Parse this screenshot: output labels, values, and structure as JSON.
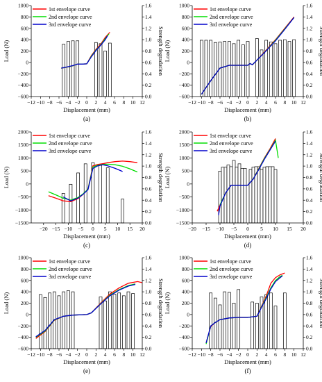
{
  "panels": [
    {
      "id": "panel-a",
      "label": "(a)",
      "xlabel": "Displacement (mm)",
      "ylabel_left": "Load (N)",
      "ylabel_right": "Strength degradation",
      "legend": [
        "1st envelope curve",
        "2nd envelope curve",
        "3rd envelope curve"
      ]
    },
    {
      "id": "panel-b",
      "label": "(b)",
      "xlabel": "Displacement (mm)",
      "ylabel_left": "Load (N)",
      "ylabel_right": "Strength degradation",
      "legend": [
        "1st envelope curve",
        "2nd envelope curve",
        "3rd envelope curve"
      ]
    },
    {
      "id": "panel-c",
      "label": "(c)",
      "xlabel": "Displacement (mm)",
      "ylabel_left": "Load (N)",
      "ylabel_right": "Strength degradation",
      "legend": [
        "1st envelope curve",
        "2nd envelope curve",
        "3rd envelope curve"
      ]
    },
    {
      "id": "panel-d",
      "label": "(d)",
      "xlabel": "Displacement (mm)",
      "ylabel_left": "Load (N)",
      "ylabel_right": "Strength degradation",
      "legend": [
        "1st envelope curve",
        "2nd envelope curve",
        "3rd envelope curve"
      ]
    },
    {
      "id": "panel-e",
      "label": "(e)",
      "xlabel": "Displacement (mm)",
      "ylabel_left": "Load (N)",
      "ylabel_right": "Strength degradation",
      "legend": [
        "1st envelope curve",
        "2nd envelope curve",
        "3rd envelope curve"
      ]
    },
    {
      "id": "panel-f",
      "label": "(f)",
      "xlabel": "Displacement (mm)",
      "ylabel_left": "Load (N)",
      "ylabel_right": "Strength degradation",
      "legend": [
        "1st envelope curve",
        "2nd envelope curve",
        "3rd envelope curve"
      ]
    }
  ],
  "colors": {
    "first": "#ff0000",
    "second": "#00dd00",
    "third": "#0000cc",
    "bar_fill": "#ffffff",
    "bar_stroke": "#000000"
  },
  "chart_data": [
    {
      "type": "line",
      "panel": "(a)",
      "xlim": [
        -12,
        12
      ],
      "ylim": [
        -600,
        1000
      ],
      "y2lim": [
        0,
        1.6
      ],
      "xticks": [
        -12,
        -10,
        -8,
        -6,
        -4,
        -2,
        0,
        2,
        4,
        6,
        8,
        10,
        12
      ],
      "yticks": [
        -600,
        -400,
        -200,
        0,
        200,
        400,
        600,
        800,
        1000
      ],
      "y2ticks": [
        0.0,
        0.2,
        0.4,
        0.6,
        0.8,
        1.0,
        1.2,
        1.4,
        1.6
      ],
      "series": [
        {
          "name": "1st envelope curve",
          "x": [
            -5.5,
            -4,
            -3,
            -2,
            -1,
            0,
            1,
            2,
            3,
            4,
            5
          ],
          "y": [
            -100,
            -80,
            -60,
            -30,
            -30,
            -25,
            120,
            230,
            320,
            440,
            530
          ]
        },
        {
          "name": "2nd envelope curve",
          "x": [
            -5.5,
            -4,
            -3,
            -2,
            -1,
            0,
            1,
            2,
            3,
            4,
            4.8
          ],
          "y": [
            -100,
            -78,
            -58,
            -30,
            -30,
            -25,
            110,
            220,
            305,
            420,
            500
          ]
        },
        {
          "name": "3rd envelope curve",
          "x": [
            -5.5,
            -4,
            -3,
            -2,
            -1,
            0,
            1,
            2,
            3,
            4,
            4.5
          ],
          "y": [
            -100,
            -75,
            -55,
            -30,
            -30,
            -25,
            100,
            210,
            300,
            400,
            470
          ]
        }
      ],
      "bars": {
        "x": [
          -5,
          -4,
          -3,
          -2,
          2,
          3,
          4,
          5
        ],
        "y": [
          0.92,
          0.97,
          0.98,
          0.98,
          0.95,
          0.93,
          0.8,
          0.94
        ]
      }
    },
    {
      "type": "line",
      "panel": "(b)",
      "xlim": [
        -12,
        12
      ],
      "ylim": [
        -600,
        1000
      ],
      "y2lim": [
        0,
        1.6
      ],
      "xticks": [
        -12,
        -10,
        -8,
        -6,
        -4,
        -2,
        0,
        2,
        4,
        6,
        8,
        10,
        12
      ],
      "yticks": [
        -600,
        -400,
        -200,
        0,
        200,
        400,
        600,
        800,
        1000
      ],
      "y2ticks": [
        0.0,
        0.2,
        0.4,
        0.6,
        0.8,
        1.0,
        1.2,
        1.4,
        1.6
      ],
      "series": [
        {
          "name": "1st envelope curve",
          "x": [
            -10,
            -8,
            -6,
            -4,
            -2,
            0,
            0.5,
            1,
            2,
            4,
            6,
            8,
            10
          ],
          "y": [
            -560,
            -320,
            -100,
            -50,
            -50,
            -50,
            -20,
            -40,
            40,
            220,
            400,
            600,
            800
          ]
        },
        {
          "name": "2nd envelope curve",
          "x": [
            -10,
            -8,
            -6,
            -4,
            -2,
            0,
            0.5,
            1,
            2,
            4,
            6,
            8,
            10
          ],
          "y": [
            -560,
            -320,
            -100,
            -50,
            -50,
            -50,
            -20,
            -40,
            40,
            210,
            390,
            590,
            790
          ]
        },
        {
          "name": "3rd envelope curve",
          "x": [
            -10,
            -8,
            -6,
            -4,
            -2,
            0,
            0.5,
            1,
            2,
            4,
            6,
            8,
            10
          ],
          "y": [
            -560,
            -320,
            -100,
            -50,
            -50,
            -50,
            -20,
            -40,
            40,
            205,
            380,
            580,
            790
          ]
        }
      ],
      "bars": {
        "x": [
          -10,
          -9,
          -8,
          -7,
          -6,
          -5,
          -4,
          -3,
          -2,
          -1,
          0,
          2,
          3,
          4,
          5,
          6,
          7,
          8,
          9,
          10
        ],
        "y": [
          0.99,
          0.99,
          0.99,
          0.95,
          0.96,
          0.97,
          0.97,
          0.93,
          0.99,
          0.91,
          0.97,
          1.02,
          0.82,
          0.99,
          0.96,
          0.93,
          0.99,
          1.0,
          0.97,
          1.0
        ]
      }
    },
    {
      "type": "line",
      "panel": "(c)",
      "xlim": [
        -25,
        20
      ],
      "ylim": [
        -1500,
        2000
      ],
      "y2lim": [
        0,
        1.6
      ],
      "xticks": [
        -20,
        -15,
        -10,
        -5,
        0,
        5,
        10,
        15,
        20
      ],
      "yticks": [
        -1500,
        -1000,
        -500,
        0,
        500,
        1000,
        1500,
        2000
      ],
      "y2ticks": [
        0.0,
        0.2,
        0.4,
        0.6,
        0.8,
        1.0,
        1.2,
        1.4,
        1.6
      ],
      "series": [
        {
          "name": "1st envelope curve",
          "x": [
            -18,
            -15,
            -12,
            -9,
            -6,
            -4,
            -2,
            0,
            2,
            4,
            6,
            9,
            12,
            15,
            18
          ],
          "y": [
            -450,
            -550,
            -650,
            -680,
            -560,
            -400,
            -200,
            700,
            750,
            780,
            820,
            860,
            880,
            860,
            820
          ]
        },
        {
          "name": "2nd envelope curve",
          "x": [
            -18,
            -15,
            -12,
            -9,
            -6,
            -4,
            -2,
            0,
            2,
            4,
            6,
            9,
            12,
            15,
            18
          ],
          "y": [
            -300,
            -420,
            -550,
            -620,
            -520,
            -380,
            -200,
            650,
            720,
            750,
            760,
            740,
            680,
            580,
            460
          ]
        },
        {
          "name": "3rd envelope curve",
          "x": [
            -12,
            -9,
            -6,
            -4,
            -2,
            0,
            2,
            4,
            6,
            9,
            12
          ],
          "y": [
            -500,
            -650,
            -540,
            -400,
            -220,
            600,
            700,
            740,
            700,
            600,
            480
          ]
        }
      ],
      "bars": {
        "x": [
          -12,
          -9,
          -6,
          -3,
          0,
          3,
          6,
          12
        ],
        "y": [
          0.52,
          0.68,
          0.88,
          1.04,
          1.06,
          1.02,
          0.97,
          0.42
        ]
      }
    },
    {
      "type": "line",
      "panel": "(d)",
      "xlim": [
        -20,
        20
      ],
      "ylim": [
        -1500,
        2000
      ],
      "y2lim": [
        0,
        1.6
      ],
      "xticks": [
        -20,
        -15,
        -10,
        -5,
        0,
        5,
        10,
        15,
        20
      ],
      "yticks": [
        -1500,
        -1000,
        -500,
        0,
        500,
        1000,
        1500,
        2000
      ],
      "y2ticks": [
        0.0,
        0.2,
        0.4,
        0.6,
        0.8,
        1.0,
        1.2,
        1.4,
        1.6
      ],
      "series": [
        {
          "name": "1st envelope curve",
          "x": [
            -11,
            -10,
            -8,
            -6,
            -4,
            -2,
            0,
            2,
            4,
            6,
            8,
            10
          ],
          "y": [
            -1050,
            -820,
            -350,
            -50,
            -50,
            -50,
            -50,
            200,
            600,
            1000,
            1350,
            1750
          ]
        },
        {
          "name": "2nd envelope curve",
          "x": [
            -10,
            -8,
            -6,
            -4,
            -2,
            0,
            2,
            4,
            6,
            8,
            10,
            11
          ],
          "y": [
            -800,
            -350,
            -50,
            -50,
            -50,
            -50,
            200,
            580,
            980,
            1320,
            1680,
            1000
          ]
        },
        {
          "name": "3rd envelope curve",
          "x": [
            -10.5,
            -10,
            -8,
            -6,
            -4,
            -2,
            0,
            2,
            4,
            6,
            8,
            10
          ],
          "y": [
            -1200,
            -850,
            -350,
            -50,
            -50,
            -50,
            -50,
            190,
            560,
            950,
            1300,
            1650
          ]
        }
      ],
      "bars": {
        "x": [
          -10,
          -9,
          -8,
          -7,
          -6,
          -5,
          -4,
          -3,
          -2,
          -1,
          1,
          2,
          3,
          4,
          5,
          6,
          7,
          8,
          9,
          10
        ],
        "y": [
          0.91,
          0.98,
          0.98,
          1.02,
          0.99,
          1.1,
          0.98,
          1.04,
          0.96,
          0.96,
          0.94,
          0.98,
          0.99,
          0.99,
          0.94,
          0.98,
          0.99,
          0.99,
          0.99,
          0.94
        ]
      }
    },
    {
      "type": "line",
      "panel": "(e)",
      "xlim": [
        -12,
        12
      ],
      "ylim": [
        -600,
        1000
      ],
      "y2lim": [
        0,
        1.6
      ],
      "xticks": [
        -12,
        -10,
        -8,
        -6,
        -4,
        -2,
        0,
        2,
        4,
        6,
        8,
        10,
        12
      ],
      "yticks": [
        -600,
        -400,
        -200,
        0,
        200,
        400,
        600,
        800,
        1000
      ],
      "y2ticks": [
        0.0,
        0.2,
        0.4,
        0.6,
        0.8,
        1.0,
        1.2,
        1.4,
        1.6
      ],
      "series": [
        {
          "name": "1st envelope curve",
          "x": [
            -11,
            -9,
            -7,
            -5,
            -3,
            0,
            1,
            3,
            5,
            7,
            9,
            11,
            12
          ],
          "y": [
            -420,
            -300,
            -100,
            -30,
            -10,
            0,
            30,
            200,
            360,
            470,
            550,
            580,
            560
          ]
        },
        {
          "name": "2nd envelope curve",
          "x": [
            -11,
            -9,
            -7,
            -5,
            -3,
            0,
            1,
            3,
            5,
            7,
            9,
            10.5
          ],
          "y": [
            -400,
            -290,
            -95,
            -30,
            -10,
            0,
            30,
            190,
            340,
            440,
            510,
            540
          ]
        },
        {
          "name": "3rd envelope curve",
          "x": [
            -11,
            -9,
            -7,
            -5,
            -3,
            0,
            1,
            3,
            5,
            7,
            9,
            10.5
          ],
          "y": [
            -390,
            -280,
            -90,
            -30,
            -10,
            0,
            30,
            185,
            330,
            430,
            500,
            530
          ]
        }
      ],
      "bars": {
        "x": [
          -10,
          -9,
          -8,
          -7,
          -6,
          -5,
          -4,
          -3,
          3,
          4,
          5,
          6,
          7,
          8,
          9,
          10
        ],
        "y": [
          0.95,
          0.9,
          0.98,
          1.0,
          0.93,
          1.0,
          1.02,
          1.0,
          0.91,
          0.84,
          1.0,
          0.96,
          0.98,
          0.93,
          1.0,
          0.97
        ]
      }
    },
    {
      "type": "line",
      "panel": "(f)",
      "xlim": [
        -12,
        12
      ],
      "ylim": [
        -600,
        1000
      ],
      "y2lim": [
        0,
        1.6
      ],
      "xticks": [
        -12,
        -10,
        -8,
        -6,
        -4,
        -2,
        0,
        2,
        4,
        6,
        8,
        10,
        12
      ],
      "yticks": [
        -600,
        -400,
        -200,
        0,
        200,
        400,
        600,
        800,
        1000
      ],
      "y2ticks": [
        0.0,
        0.2,
        0.4,
        0.6,
        0.8,
        1.0,
        1.2,
        1.4,
        1.6
      ],
      "series": [
        {
          "name": "1st envelope curve",
          "x": [
            -9,
            -8,
            -7,
            -6,
            -4,
            -2,
            0,
            2,
            3,
            4,
            5,
            6,
            7,
            8
          ],
          "y": [
            -500,
            -210,
            -140,
            -90,
            -60,
            -50,
            -50,
            -30,
            150,
            330,
            550,
            650,
            700,
            730
          ]
        },
        {
          "name": "2nd envelope curve",
          "x": [
            -9,
            -8,
            -7,
            -6,
            -4,
            -2,
            0,
            2,
            3,
            4,
            5,
            6,
            7,
            7.5
          ],
          "y": [
            -520,
            -200,
            -140,
            -90,
            -60,
            -50,
            -50,
            -30,
            140,
            300,
            470,
            600,
            670,
            690
          ]
        },
        {
          "name": "3rd envelope curve",
          "x": [
            -9,
            -8,
            -7,
            -6,
            -4,
            -2,
            0,
            2,
            3,
            4,
            5,
            6,
            7,
            7.5
          ],
          "y": [
            -500,
            -200,
            -140,
            -90,
            -60,
            -50,
            -50,
            -30,
            130,
            280,
            450,
            580,
            650,
            680
          ]
        }
      ],
      "bars": {
        "x": [
          -8,
          -7,
          -6,
          -5,
          -4,
          -3,
          -2,
          1,
          2,
          3,
          4,
          5,
          6,
          8
        ],
        "y": [
          0.98,
          0.89,
          0.77,
          1.0,
          0.99,
          0.8,
          1.04,
          0.82,
          0.8,
          0.91,
          0.95,
          0.98,
          0.75,
          0.98
        ]
      }
    }
  ]
}
